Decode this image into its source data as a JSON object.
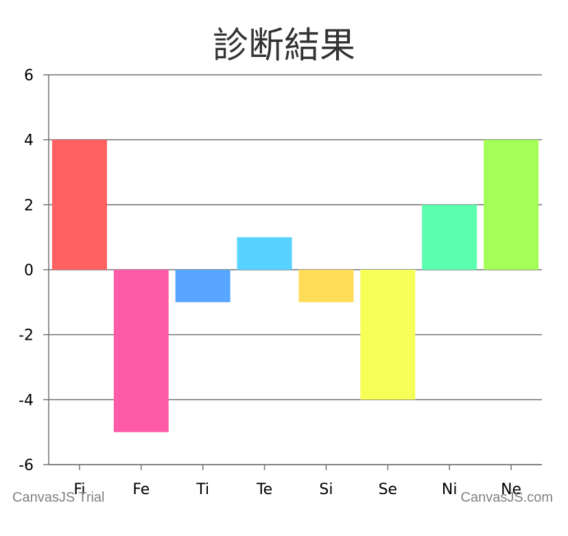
{
  "chart_data": {
    "type": "bar",
    "title": "診断結果",
    "categories": [
      "Fi",
      "Fe",
      "Ti",
      "Te",
      "Si",
      "Se",
      "Ni",
      "Ne"
    ],
    "values": [
      4,
      -5,
      -1,
      1,
      -1,
      -4,
      2,
      4
    ],
    "colors": [
      "#FF6060",
      "#FF5AA8",
      "#58A6FF",
      "#58D2FF",
      "#FFDC58",
      "#F5FF58",
      "#5AFFB0",
      "#A4FF58"
    ],
    "ylim": [
      -6,
      6
    ],
    "yticks": [
      6,
      4,
      2,
      0,
      -2,
      -4,
      -6
    ],
    "grid": true
  },
  "watermarks": {
    "left": "CanvasJS Trial",
    "right": "CanvasJS.com"
  }
}
